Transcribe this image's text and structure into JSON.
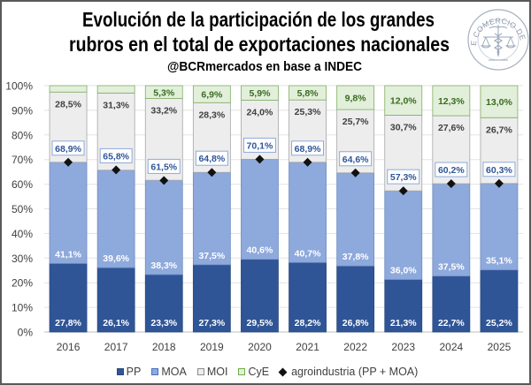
{
  "header": {
    "title_line1": "Evolución de la participación de los grandes",
    "title_line2": "rubros en el total de exportaciones nacionales",
    "subtitle": "@BCRmercados en base a INDEC",
    "logo_text": "BOLSA DE COMERCIO DE ROSARIO",
    "logo_icon": "bcr-seal-caduceus-scales-icon"
  },
  "legend": {
    "items": [
      {
        "label": "PP",
        "icon": "square",
        "color": "#2F5597"
      },
      {
        "label": "MOA",
        "icon": "square",
        "color": "#8EA9DB"
      },
      {
        "label": "MOI",
        "icon": "square",
        "color": "#EDEDED"
      },
      {
        "label": "CyE",
        "icon": "square",
        "color": "#E2EFDA"
      },
      {
        "label": "agroindustria (PP + MOA)",
        "icon": "diamond",
        "color": "#111111"
      }
    ]
  },
  "chart_data": {
    "type": "bar",
    "stacked": true,
    "title": "Evolución de la participación de los grandes rubros en el total de exportaciones nacionales",
    "subtitle": "@BCRmercados en base a INDEC",
    "xlabel": "",
    "ylabel": "",
    "ylim": [
      0,
      100
    ],
    "yticks": [
      0,
      10,
      20,
      30,
      40,
      50,
      60,
      70,
      80,
      90,
      100
    ],
    "ytick_labels": [
      "0%",
      "10%",
      "20%",
      "30%",
      "40%",
      "50%",
      "60%",
      "70%",
      "80%",
      "90%",
      "100%"
    ],
    "grid": true,
    "legend_position": "bottom",
    "categories": [
      "2016",
      "2017",
      "2018",
      "2019",
      "2020",
      "2021",
      "2022",
      "2023",
      "2024",
      "2025"
    ],
    "series": [
      {
        "name": "PP",
        "color": "#2F5597",
        "stroke": "#2A4A80",
        "label_color": "#FFFFFF",
        "values": [
          27.8,
          26.1,
          23.3,
          27.3,
          29.5,
          28.2,
          26.8,
          21.3,
          22.7,
          25.2
        ],
        "labels": [
          "27,8%",
          "26,1%",
          "23,3%",
          "27,3%",
          "29,5%",
          "28,2%",
          "26,8%",
          "21,3%",
          "22,7%",
          "25,2%"
        ]
      },
      {
        "name": "MOA",
        "color": "#8EA9DB",
        "stroke": "#6F8DC3",
        "label_color": "#FFFFFF",
        "values": [
          41.1,
          39.6,
          38.3,
          37.5,
          40.6,
          40.7,
          37.8,
          36.0,
          37.5,
          35.1
        ],
        "labels": [
          "41,1%",
          "39,6%",
          "38,3%",
          "37,5%",
          "40,6%",
          "40,7%",
          "37,8%",
          "36,0%",
          "37,5%",
          "35,1%"
        ]
      },
      {
        "name": "MOI",
        "color": "#EDEDED",
        "stroke": "#A6A6A6",
        "label_color": "#404040",
        "values": [
          28.5,
          31.3,
          33.2,
          28.3,
          24.0,
          25.3,
          25.7,
          30.7,
          27.6,
          26.7
        ],
        "labels": [
          "28,5%",
          "31,3%",
          "33,2%",
          "28,3%",
          "24,0%",
          "25,3%",
          "25,7%",
          "30,7%",
          "27,6%",
          "26,7%"
        ]
      },
      {
        "name": "CyE",
        "color": "#E2EFDA",
        "stroke": "#7FAF62",
        "label_color": "#3A6B22",
        "values": [
          2.6,
          3.0,
          5.3,
          6.9,
          5.9,
          5.8,
          9.8,
          12.0,
          12.3,
          13.0
        ],
        "labels": [
          null,
          null,
          "5,3%",
          "6,9%",
          "5,9%",
          "5,8%",
          "9,8%",
          "12,0%",
          "12,3%",
          "13,0%"
        ]
      }
    ],
    "line_series": {
      "name": "agroindustria (PP + MOA)",
      "marker": "diamond",
      "color": "#111111",
      "label_color": "#2F5597",
      "label_box_stroke": "#8EA9DB",
      "values": [
        68.9,
        65.8,
        61.5,
        64.8,
        70.1,
        68.9,
        64.6,
        57.3,
        60.2,
        60.3
      ],
      "labels": [
        "68,9%",
        "65,8%",
        "61,5%",
        "64,8%",
        "70,1%",
        "68,9%",
        "64,6%",
        "57,3%",
        "60,2%",
        "60,3%"
      ]
    }
  }
}
